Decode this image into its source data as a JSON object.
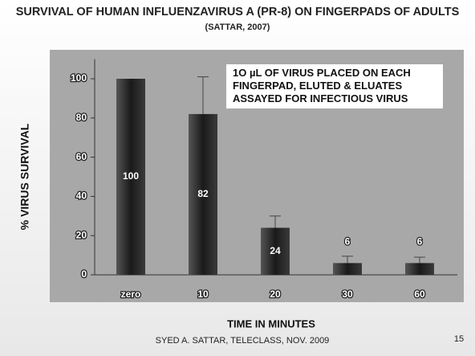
{
  "chart_data": {
    "type": "bar",
    "title": "SURVIVAL OF HUMAN INFLUENZAVIRUS A (PR-8) ON FINGERPADS OF ADULTS",
    "title_note": "(SATTAR, 2007)",
    "annotation": [
      "1O µL OF VIRUS PLACED ON EACH",
      "FINGERPAD, ELUTED & ELUATES",
      "ASSAYED FOR INFECTIOUS VIRUS"
    ],
    "x_label": "TIME IN MINUTES",
    "y_label": "% VIRUS SURVIVAL",
    "categories": [
      "zero",
      "10",
      "20",
      "30",
      "60"
    ],
    "values": [
      100,
      82,
      24,
      6,
      6
    ],
    "errors": [
      null,
      19,
      6,
      3.5,
      3
    ],
    "ylim": [
      0,
      110
    ],
    "yticks": [
      0,
      20,
      40,
      60,
      80,
      100
    ],
    "footer": "SYED A. SATTAR, TELECLASS, NOV. 2009",
    "page_number": "15"
  }
}
